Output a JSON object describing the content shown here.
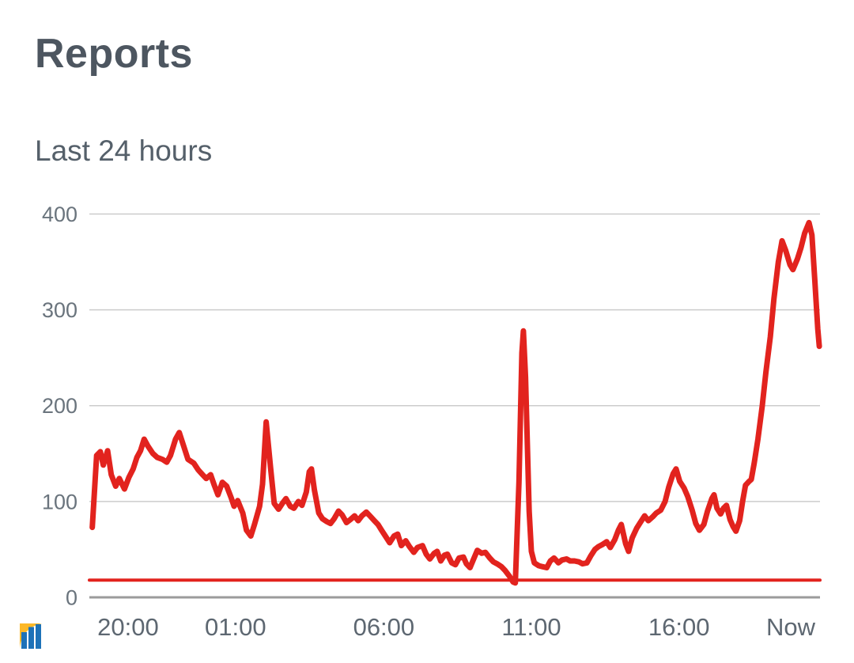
{
  "header": {
    "title": "Reports",
    "subtitle": "Last 24 hours"
  },
  "colors": {
    "line": "#e2231e",
    "threshold": "#e2231e",
    "grid": "#cccccc",
    "axis": "#9b9b9b",
    "title_text": "#4d5660",
    "subtitle_text": "#55606a",
    "ytick_text": "#6a747d",
    "xtick_text": "#5d6771",
    "logo_blue": "#1d72b8",
    "logo_yellow": "#fdb827",
    "background": "#ffffff"
  },
  "logo": {
    "icon": "bar-chart-growth-logo"
  },
  "chart_data": {
    "type": "line",
    "title": "Reports",
    "subtitle": "Last 24 hours",
    "xlabel": "",
    "ylabel": "",
    "ylim": [
      0,
      400
    ],
    "y_ticks": [
      0,
      100,
      200,
      300,
      400
    ],
    "grid": "horizontal",
    "legend": "none",
    "x_ticks": [
      {
        "label": "20:00",
        "pos": 0.053
      },
      {
        "label": "01:00",
        "pos": 0.2
      },
      {
        "label": "06:00",
        "pos": 0.403
      },
      {
        "label": "11:00",
        "pos": 0.605
      },
      {
        "label": "16:00",
        "pos": 0.807
      },
      {
        "label": "Now",
        "pos": 0.96
      }
    ],
    "series": [
      {
        "name": "reports",
        "style": "thick-line",
        "points": [
          [
            0.004,
            73
          ],
          [
            0.01,
            148
          ],
          [
            0.015,
            152
          ],
          [
            0.019,
            138
          ],
          [
            0.025,
            153
          ],
          [
            0.03,
            128
          ],
          [
            0.036,
            116
          ],
          [
            0.041,
            124
          ],
          [
            0.048,
            113
          ],
          [
            0.054,
            125
          ],
          [
            0.06,
            134
          ],
          [
            0.065,
            146
          ],
          [
            0.07,
            153
          ],
          [
            0.075,
            165
          ],
          [
            0.08,
            158
          ],
          [
            0.087,
            150
          ],
          [
            0.093,
            146
          ],
          [
            0.1,
            144
          ],
          [
            0.106,
            141
          ],
          [
            0.111,
            148
          ],
          [
            0.118,
            165
          ],
          [
            0.123,
            172
          ],
          [
            0.129,
            158
          ],
          [
            0.135,
            144
          ],
          [
            0.143,
            140
          ],
          [
            0.149,
            133
          ],
          [
            0.155,
            128
          ],
          [
            0.16,
            124
          ],
          [
            0.166,
            128
          ],
          [
            0.171,
            117
          ],
          [
            0.176,
            107
          ],
          [
            0.182,
            120
          ],
          [
            0.188,
            116
          ],
          [
            0.194,
            104
          ],
          [
            0.198,
            95
          ],
          [
            0.203,
            101
          ],
          [
            0.21,
            88
          ],
          [
            0.215,
            70
          ],
          [
            0.221,
            64
          ],
          [
            0.226,
            76
          ],
          [
            0.233,
            95
          ],
          [
            0.237,
            118
          ],
          [
            0.242,
            183
          ],
          [
            0.248,
            135
          ],
          [
            0.253,
            98
          ],
          [
            0.259,
            92
          ],
          [
            0.265,
            99
          ],
          [
            0.269,
            103
          ],
          [
            0.275,
            95
          ],
          [
            0.28,
            93
          ],
          [
            0.286,
            100
          ],
          [
            0.291,
            96
          ],
          [
            0.297,
            110
          ],
          [
            0.301,
            131
          ],
          [
            0.304,
            134
          ],
          [
            0.308,
            112
          ],
          [
            0.314,
            88
          ],
          [
            0.319,
            82
          ],
          [
            0.325,
            79
          ],
          [
            0.33,
            77
          ],
          [
            0.335,
            82
          ],
          [
            0.341,
            90
          ],
          [
            0.346,
            86
          ],
          [
            0.352,
            78
          ],
          [
            0.357,
            81
          ],
          [
            0.363,
            85
          ],
          [
            0.368,
            80
          ],
          [
            0.373,
            85
          ],
          [
            0.379,
            89
          ],
          [
            0.384,
            85
          ],
          [
            0.39,
            80
          ],
          [
            0.395,
            76
          ],
          [
            0.4,
            70
          ],
          [
            0.406,
            63
          ],
          [
            0.411,
            57
          ],
          [
            0.417,
            64
          ],
          [
            0.422,
            66
          ],
          [
            0.427,
            54
          ],
          [
            0.433,
            59
          ],
          [
            0.438,
            53
          ],
          [
            0.444,
            47
          ],
          [
            0.449,
            52
          ],
          [
            0.456,
            54
          ],
          [
            0.461,
            45
          ],
          [
            0.466,
            40
          ],
          [
            0.472,
            46
          ],
          [
            0.476,
            48
          ],
          [
            0.481,
            38
          ],
          [
            0.486,
            44
          ],
          [
            0.49,
            45
          ],
          [
            0.496,
            36
          ],
          [
            0.501,
            34
          ],
          [
            0.506,
            41
          ],
          [
            0.512,
            42
          ],
          [
            0.516,
            35
          ],
          [
            0.521,
            31
          ],
          [
            0.526,
            40
          ],
          [
            0.531,
            49
          ],
          [
            0.537,
            46
          ],
          [
            0.542,
            47
          ],
          [
            0.548,
            41
          ],
          [
            0.553,
            37
          ],
          [
            0.558,
            35
          ],
          [
            0.564,
            32
          ],
          [
            0.569,
            28
          ],
          [
            0.575,
            22
          ],
          [
            0.58,
            16
          ],
          [
            0.583,
            15
          ],
          [
            0.588,
            120
          ],
          [
            0.592,
            255
          ],
          [
            0.594,
            278
          ],
          [
            0.597,
            230
          ],
          [
            0.602,
            90
          ],
          [
            0.605,
            48
          ],
          [
            0.609,
            36
          ],
          [
            0.615,
            33
          ],
          [
            0.62,
            32
          ],
          [
            0.626,
            31
          ],
          [
            0.631,
            38
          ],
          [
            0.636,
            41
          ],
          [
            0.642,
            36
          ],
          [
            0.647,
            39
          ],
          [
            0.653,
            40
          ],
          [
            0.658,
            38
          ],
          [
            0.664,
            38
          ],
          [
            0.67,
            37
          ],
          [
            0.675,
            35
          ],
          [
            0.681,
            36
          ],
          [
            0.686,
            43
          ],
          [
            0.692,
            50
          ],
          [
            0.697,
            53
          ],
          [
            0.702,
            55
          ],
          [
            0.708,
            58
          ],
          [
            0.713,
            52
          ],
          [
            0.719,
            60
          ],
          [
            0.724,
            70
          ],
          [
            0.728,
            76
          ],
          [
            0.734,
            56
          ],
          [
            0.738,
            48
          ],
          [
            0.743,
            62
          ],
          [
            0.749,
            72
          ],
          [
            0.754,
            78
          ],
          [
            0.76,
            85
          ],
          [
            0.765,
            80
          ],
          [
            0.771,
            84
          ],
          [
            0.776,
            88
          ],
          [
            0.782,
            91
          ],
          [
            0.788,
            100
          ],
          [
            0.793,
            115
          ],
          [
            0.799,
            129
          ],
          [
            0.803,
            134
          ],
          [
            0.808,
            121
          ],
          [
            0.814,
            114
          ],
          [
            0.819,
            105
          ],
          [
            0.825,
            91
          ],
          [
            0.83,
            77
          ],
          [
            0.835,
            70
          ],
          [
            0.841,
            76
          ],
          [
            0.846,
            90
          ],
          [
            0.852,
            103
          ],
          [
            0.855,
            107
          ],
          [
            0.859,
            93
          ],
          [
            0.864,
            87
          ],
          [
            0.868,
            93
          ],
          [
            0.872,
            96
          ],
          [
            0.877,
            81
          ],
          [
            0.881,
            74
          ],
          [
            0.885,
            69
          ],
          [
            0.89,
            80
          ],
          [
            0.894,
            100
          ],
          [
            0.898,
            117
          ],
          [
            0.903,
            121
          ],
          [
            0.906,
            123
          ],
          [
            0.91,
            140
          ],
          [
            0.915,
            165
          ],
          [
            0.921,
            200
          ],
          [
            0.926,
            235
          ],
          [
            0.932,
            272
          ],
          [
            0.937,
            312
          ],
          [
            0.943,
            350
          ],
          [
            0.948,
            372
          ],
          [
            0.953,
            362
          ],
          [
            0.959,
            347
          ],
          [
            0.963,
            342
          ],
          [
            0.969,
            353
          ],
          [
            0.974,
            365
          ],
          [
            0.979,
            380
          ],
          [
            0.985,
            391
          ],
          [
            0.989,
            378
          ],
          [
            0.993,
            330
          ],
          [
            0.997,
            280
          ],
          [
            0.999,
            262
          ]
        ]
      },
      {
        "name": "threshold",
        "style": "flat-line",
        "value": 18
      }
    ]
  }
}
